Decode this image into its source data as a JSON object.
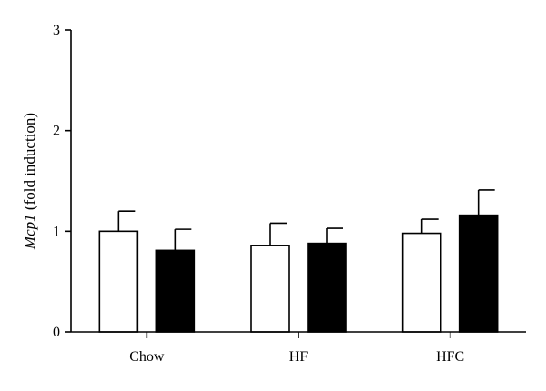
{
  "chart_data": {
    "type": "bar",
    "categories": [
      "Chow",
      "HF",
      "HFC"
    ],
    "series": [
      {
        "fill": "#ffffff",
        "values": [
          1.0,
          0.86,
          0.98
        ],
        "errors": [
          0.2,
          0.22,
          0.14
        ]
      },
      {
        "fill": "#000000",
        "values": [
          0.81,
          0.88,
          1.16
        ],
        "errors": [
          0.21,
          0.15,
          0.25
        ]
      }
    ],
    "ylim": [
      0,
      3
    ],
    "yticks": [
      0,
      1,
      2,
      3
    ],
    "ylabel_italic": "Mcp1",
    "ylabel_rest": " (fold induction)",
    "xlabel": ""
  }
}
